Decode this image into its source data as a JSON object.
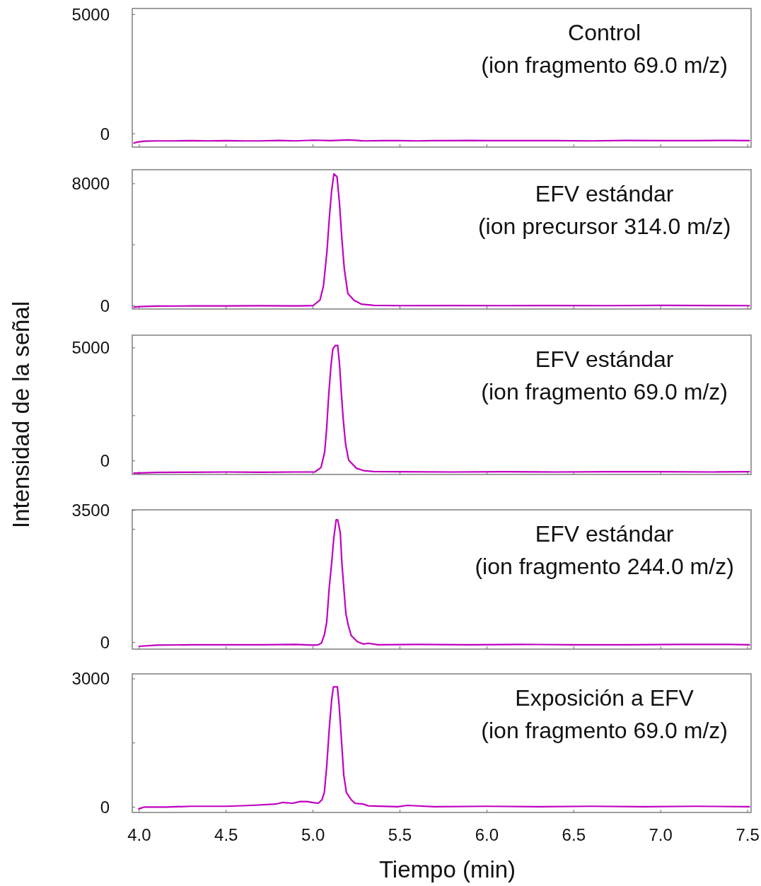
{
  "chart_data": [
    {
      "type": "line",
      "title": "Control",
      "subtitle": "(ion fragmento 69.0 m/z)",
      "color": "#c000c0",
      "x": [
        3.97,
        3.99,
        4.03,
        4.1,
        4.2,
        4.3,
        4.4,
        4.5,
        4.6,
        4.7,
        4.8,
        4.9,
        5.0,
        5.1,
        5.2,
        5.3,
        5.4,
        5.5,
        5.6,
        5.7,
        5.8,
        5.9,
        6.0,
        6.2,
        6.4,
        6.6,
        6.8,
        7.0,
        7.2,
        7.4,
        7.51
      ],
      "values": [
        -390,
        -350,
        -310,
        -300,
        -300,
        -290,
        -300,
        -290,
        -300,
        -300,
        -280,
        -300,
        -270,
        -290,
        -260,
        -300,
        -290,
        -290,
        -300,
        -290,
        -290,
        -280,
        -290,
        -290,
        -290,
        -300,
        -280,
        -290,
        -290,
        -280,
        -290
      ],
      "xlim": [
        3.96,
        7.52
      ],
      "ylim": [
        -560,
        5255
      ],
      "xticks": [
        4,
        4.5,
        5,
        5.5,
        6,
        6.5,
        7,
        7.5
      ],
      "yticks": [
        0,
        5000
      ],
      "tick_labels": "y"
    },
    {
      "type": "line",
      "title": "EFV estándar",
      "subtitle": "(ion precursor 314.0 m/z)",
      "color": "#c000c0",
      "x": [
        3.97,
        4.0,
        4.1,
        4.3,
        4.5,
        4.7,
        4.9,
        4.97,
        5.0,
        5.04,
        5.06,
        5.08,
        5.095,
        5.107,
        5.12,
        5.138,
        5.152,
        5.166,
        5.18,
        5.2,
        5.236,
        5.278,
        5.35,
        5.5,
        5.8,
        6.1,
        6.4,
        6.7,
        7.0,
        7.3,
        7.51
      ],
      "values": [
        -100,
        -60,
        -30,
        -20,
        -20,
        -10,
        -20,
        -10,
        0,
        370,
        1300,
        3550,
        5950,
        7550,
        8650,
        8450,
        6750,
        4350,
        2400,
        800,
        350,
        100,
        20,
        0,
        10,
        0,
        10,
        0,
        20,
        10,
        0
      ],
      "xlim": [
        3.96,
        7.52
      ],
      "ylim": [
        -220,
        8920
      ],
      "xticks": [
        4,
        4.5,
        5,
        5.5,
        6,
        6.5,
        7,
        7.5
      ],
      "yticks": [
        0,
        {
          "value": 4000,
          "label": null
        },
        8000
      ],
      "tick_labels": "y"
    },
    {
      "type": "line",
      "title": "EFV estándar",
      "subtitle": "(ion fragmento 69.0 m/z)",
      "ylabel": "Intensidad de la señal",
      "color": "#c000c0",
      "x": [
        3.97,
        4.1,
        4.3,
        4.5,
        4.7,
        4.9,
        5.011,
        5.046,
        5.067,
        5.078,
        5.09,
        5.103,
        5.114,
        5.128,
        5.142,
        5.152,
        5.163,
        5.173,
        5.187,
        5.205,
        5.25,
        5.292,
        5.35,
        5.5,
        5.8,
        6.1,
        6.4,
        6.7,
        7.0,
        7.3,
        7.51
      ],
      "values": [
        -540,
        -510,
        -500,
        -490,
        -500,
        -490,
        -490,
        -290,
        400,
        1400,
        2900,
        4200,
        4950,
        5100,
        5100,
        4300,
        3000,
        1900,
        750,
        30,
        -330,
        -430,
        -470,
        -480,
        -490,
        -480,
        -490,
        -480,
        -480,
        -490,
        -480
      ],
      "xlim": [
        3.96,
        7.52
      ],
      "ylim": [
        -600,
        5560
      ],
      "xticks": [
        4,
        4.5,
        5,
        5.5,
        6,
        6.5,
        7,
        7.5
      ],
      "yticks": [
        0,
        {
          "value": 2000,
          "label": null
        },
        5000
      ],
      "tick_labels": "y"
    },
    {
      "type": "line",
      "title": "EFV estándar",
      "subtitle": "(ion fragmento 244.0 m/z)",
      "color": "#c000c0",
      "x": [
        4.0,
        4.1,
        4.3,
        4.5,
        4.7,
        4.9,
        5.0,
        5.03,
        5.049,
        5.065,
        5.079,
        5.093,
        5.107,
        5.119,
        5.133,
        5.142,
        5.157,
        5.166,
        5.177,
        5.189,
        5.203,
        5.22,
        5.255,
        5.29,
        5.318,
        5.374,
        5.6,
        5.9,
        6.2,
        6.5,
        6.8,
        7.1,
        7.4,
        7.51
      ],
      "values": [
        -100,
        -70,
        -60,
        -60,
        -60,
        -50,
        -70,
        -60,
        -10,
        200,
        550,
        1450,
        2100,
        2750,
        3250,
        3250,
        2900,
        2100,
        1450,
        760,
        450,
        180,
        20,
        -40,
        -20,
        -60,
        -50,
        -60,
        -50,
        -60,
        -60,
        -50,
        -50,
        -60
      ],
      "xlim": [
        3.96,
        7.52
      ],
      "ylim": [
        -175,
        3515
      ],
      "xticks": [
        4,
        4.5,
        5,
        5.5,
        6,
        6.5,
        7,
        7.5
      ],
      "yticks": [
        0,
        {
          "value": 3000,
          "label": null
        },
        3500
      ],
      "tick_labels": "y"
    },
    {
      "type": "line",
      "title": "Exposición a EFV",
      "subtitle": "(ion fragmento 69.0 m/z)",
      "xlabel": "Tiempo (min)",
      "color": "#c000c0",
      "x": [
        3.998,
        4.027,
        4.153,
        4.3,
        4.504,
        4.644,
        4.784,
        4.826,
        4.883,
        4.925,
        4.967,
        5.009,
        5.03,
        5.051,
        5.065,
        5.079,
        5.093,
        5.107,
        5.117,
        5.14,
        5.15,
        5.164,
        5.177,
        5.192,
        5.22,
        5.241,
        5.29,
        5.318,
        5.486,
        5.543,
        5.697,
        6.0,
        6.3,
        6.6,
        6.9,
        7.2,
        7.51
      ],
      "values": [
        -40,
        0,
        0,
        20,
        20,
        40,
        70,
        110,
        90,
        130,
        130,
        100,
        90,
        170,
        340,
        970,
        1820,
        2500,
        2810,
        2810,
        2390,
        1540,
        740,
        340,
        170,
        90,
        70,
        30,
        10,
        40,
        10,
        20,
        10,
        20,
        10,
        20,
        10
      ],
      "xlim": [
        3.96,
        7.52
      ],
      "ylim": [
        -125,
        3115
      ],
      "xticks": [
        {
          "value": 4,
          "label": "4.0"
        },
        4.5,
        {
          "value": 5,
          "label": "5.0"
        },
        5.5,
        {
          "value": 6,
          "label": "6.0"
        },
        6.5,
        {
          "value": 7,
          "label": "7.0"
        },
        7.5
      ],
      "yticks": [
        0,
        {
          "value": 1500,
          "label": null
        },
        3000
      ]
    }
  ]
}
